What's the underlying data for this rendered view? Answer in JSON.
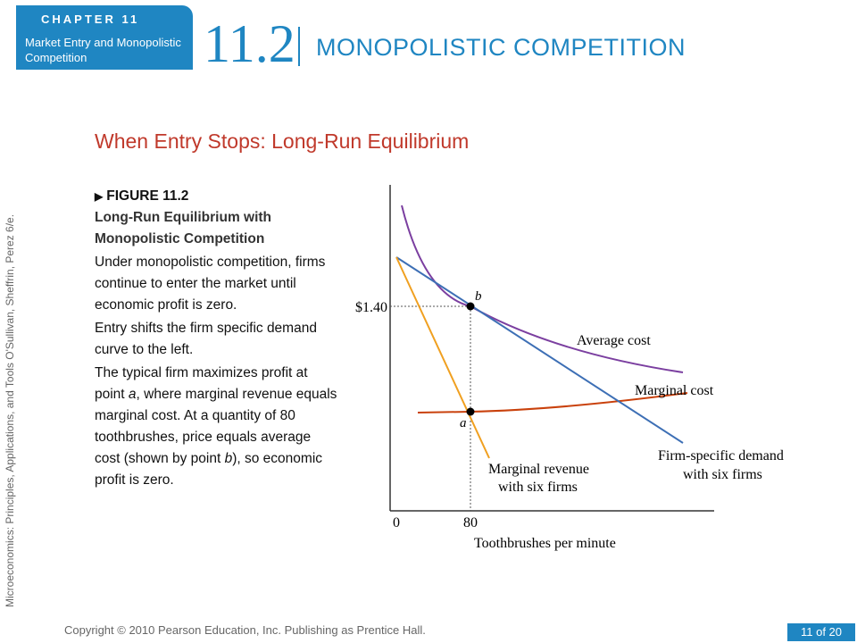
{
  "header": {
    "chapter_label": "CHAPTER 11",
    "chapter_subtitle": "Market Entry and Monopolistic Competition",
    "section_number": "11.2",
    "section_title": "MONOPOLISTIC COMPETITION"
  },
  "side_text": "Microeconomics: Principles, Applications, and Tools    O'Sullivan, Sheffrin, Perez    6/e.",
  "slide_title": "When Entry Stops: Long-Run Equilibrium",
  "figure": {
    "label": "FIGURE 11.2",
    "title": "Long-Run Equilibrium with Monopolistic Competition",
    "paragraphs": [
      "Under monopolistic competition, firms continue to enter the market until economic profit is zero.",
      "Entry shifts the firm specific demand curve to the left."
    ],
    "paragraph3": {
      "p1": "The typical firm maximizes profit at point ",
      "a": "a",
      "p2": ", where marginal revenue equals marginal cost. At a quantity of 80 toothbrushes, price equals average cost (shown by point ",
      "b": "b",
      "p3": "), so economic profit is zero."
    }
  },
  "diagram": {
    "price_label": "$1.40",
    "point_b": "b",
    "point_a": "a",
    "zero_label": "0",
    "quantity_label": "80",
    "xlabel": "Toothbrushes per minute",
    "curves": {
      "average_cost": "Average cost",
      "marginal_cost": "Marginal cost",
      "demand_line1": "Firm-specific demand",
      "demand_line2": "with six firms",
      "mr_line1": "Marginal revenue",
      "mr_line2": "with six firms"
    },
    "colors": {
      "average_cost": "#7b3fa0",
      "marginal_cost": "#c9410c",
      "demand": "#3d6fb5",
      "marginal_revenue": "#f0a020"
    }
  },
  "footer": {
    "copyright": "Copyright © 2010  Pearson Education, Inc. Publishing as Prentice Hall.",
    "page": "11 of 20"
  }
}
